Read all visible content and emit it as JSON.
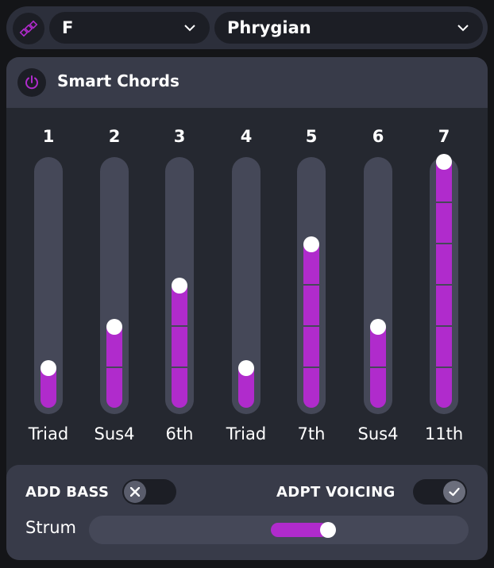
{
  "colors": {
    "accent": "#b02bcc",
    "panel": "#252830",
    "header": "#383b49",
    "track": "#454858"
  },
  "topbar": {
    "logo_icon": "dice-diagonal-icon",
    "key_select": {
      "value": "F",
      "icon": "chevron-down-icon"
    },
    "scale_select": {
      "value": "Phrygian",
      "icon": "chevron-down-icon"
    }
  },
  "panel": {
    "title": "Smart Chords",
    "power_icon": "power-icon",
    "columns": [
      {
        "number": "1",
        "label": "Triad",
        "level": 1
      },
      {
        "number": "2",
        "label": "Sus4",
        "level": 2
      },
      {
        "number": "3",
        "label": "6th",
        "level": 3
      },
      {
        "number": "4",
        "label": "Triad",
        "level": 1
      },
      {
        "number": "5",
        "label": "7th",
        "level": 4
      },
      {
        "number": "6",
        "label": "Sus4",
        "level": 2
      },
      {
        "number": "7",
        "label": "11th",
        "level": 6
      }
    ],
    "max_level": 6
  },
  "options": {
    "add_bass": {
      "label": "ADD BASS",
      "on": false,
      "icon": "x-icon"
    },
    "adpt_voicing": {
      "label": "ADPT VOICING",
      "on": true,
      "icon": "check-icon"
    },
    "strum": {
      "label": "Strum",
      "value_min": 0.48,
      "value_max": 0.63
    }
  }
}
